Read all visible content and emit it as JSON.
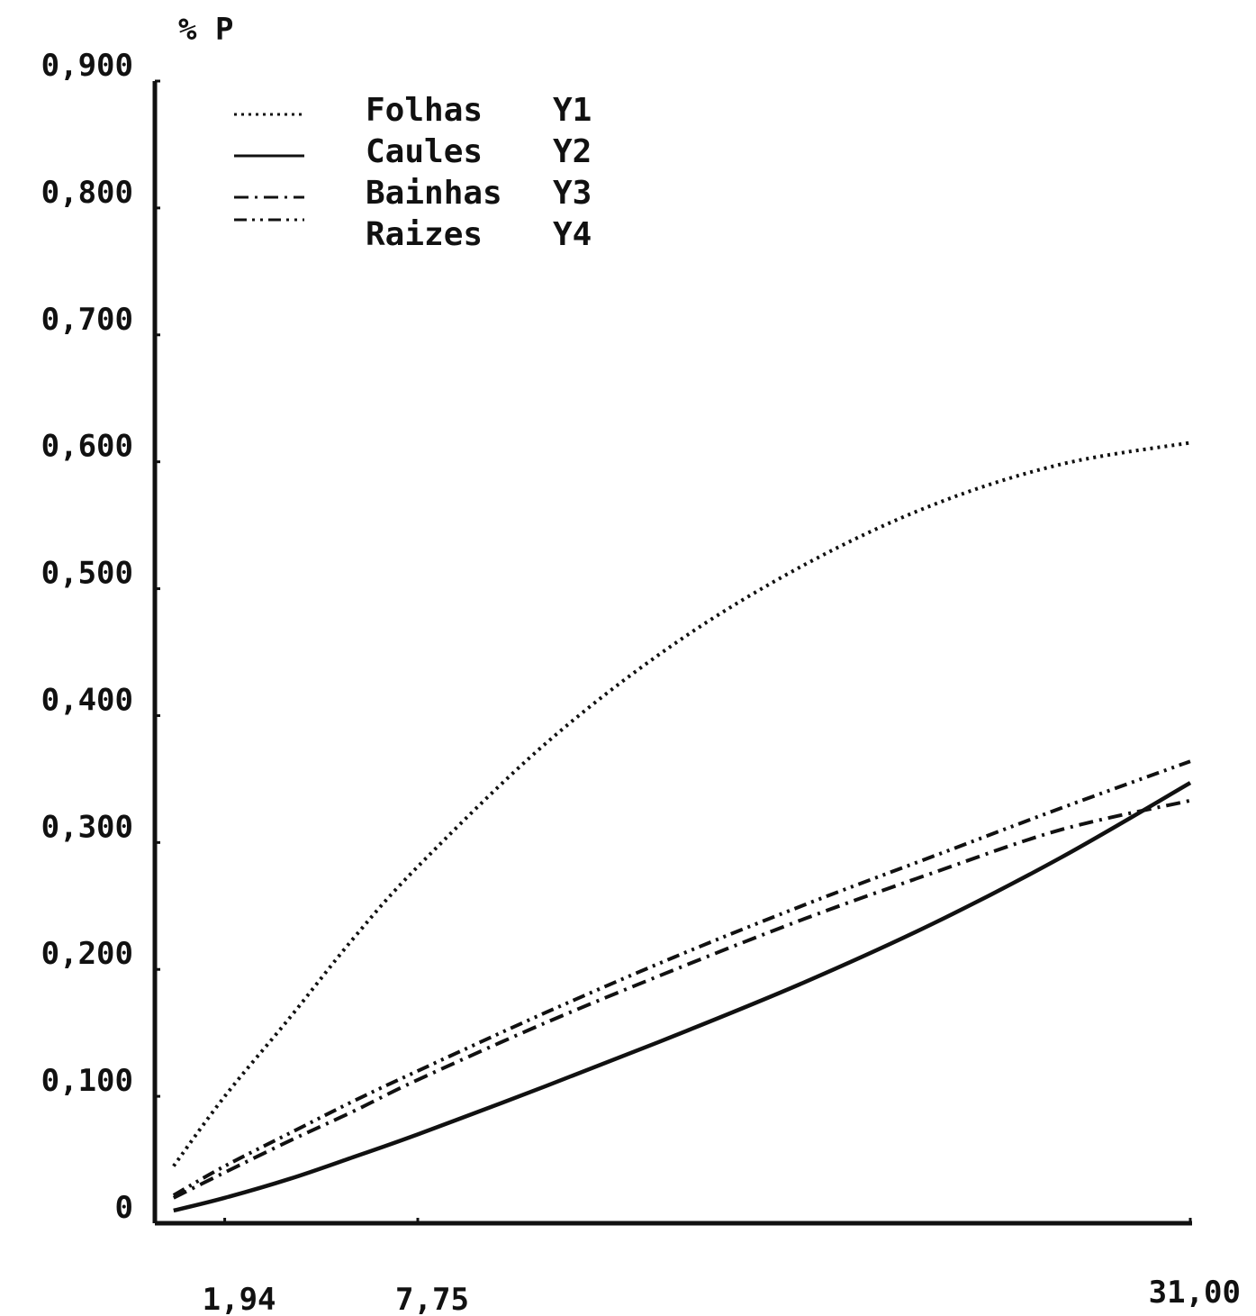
{
  "chart_data": {
    "type": "line",
    "ylabel": "% P",
    "xlabel": "",
    "title": "",
    "x_tick_labels": [
      {
        "value": 1.94,
        "label": "1,94"
      },
      {
        "value": 7.75,
        "label": "7,75"
      },
      {
        "value": 31.0,
        "label": "31,00"
      }
    ],
    "y_tick_labels": [
      {
        "value": 0.0,
        "label": "0"
      },
      {
        "value": 0.1,
        "label": "0,100"
      },
      {
        "value": 0.2,
        "label": "0,200"
      },
      {
        "value": 0.3,
        "label": "0,300"
      },
      {
        "value": 0.4,
        "label": "0,400"
      },
      {
        "value": 0.5,
        "label": "0,500"
      },
      {
        "value": 0.6,
        "label": "0,600"
      },
      {
        "value": 0.7,
        "label": "0,700"
      },
      {
        "value": 0.8,
        "label": "0,800"
      },
      {
        "value": 0.9,
        "label": "0,900"
      }
    ],
    "xlim": [
      0,
      31.0
    ],
    "ylim": [
      0,
      0.9
    ],
    "grid": false,
    "legend_position": "top-left",
    "x": [
      0.4,
      1.94,
      3.9,
      5.8,
      7.75,
      11.6,
      15.5,
      19.4,
      23.25,
      27.1,
      31.0
    ],
    "series": [
      {
        "name": "Folhas",
        "key": "Y1",
        "style": "dotted",
        "values": [
          0.045,
          0.1,
          0.162,
          0.224,
          0.281,
          0.378,
          0.457,
          0.519,
          0.566,
          0.598,
          0.615
        ]
      },
      {
        "name": "Caules",
        "key": "Y2",
        "style": "solid",
        "values": [
          0.01,
          0.02,
          0.035,
          0.052,
          0.07,
          0.108,
          0.148,
          0.19,
          0.236,
          0.288,
          0.347
        ]
      },
      {
        "name": "Bainhas",
        "key": "Y3",
        "style": "dash-dot",
        "values": [
          0.02,
          0.04,
          0.065,
          0.088,
          0.113,
          0.158,
          0.2,
          0.24,
          0.276,
          0.31,
          0.333
        ]
      },
      {
        "name": "Raizes",
        "key": "Y4",
        "style": "dash-dot-dot",
        "values": [
          0.022,
          0.045,
          0.071,
          0.096,
          0.12,
          0.166,
          0.21,
          0.251,
          0.289,
          0.327,
          0.364
        ]
      }
    ]
  }
}
